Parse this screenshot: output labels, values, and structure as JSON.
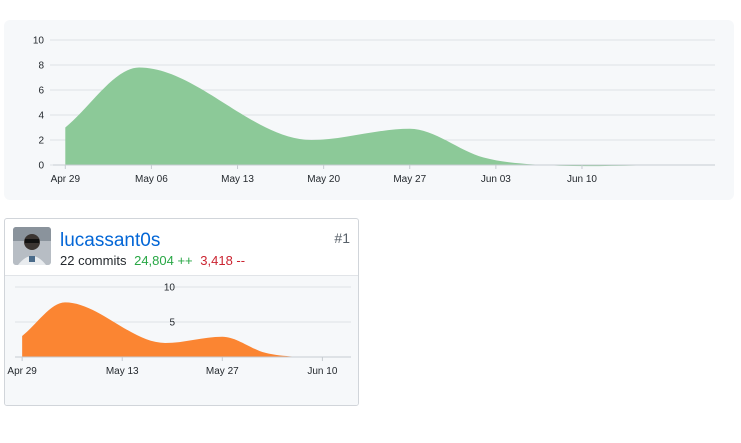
{
  "chart_data": [
    {
      "type": "area",
      "title": "",
      "xlabel": "",
      "ylabel": "",
      "x_tick_labels": [
        "Apr 29",
        "May 06",
        "May 13",
        "May 20",
        "May 27",
        "Jun 03",
        "Jun 10"
      ],
      "y_ticks": [
        0,
        2,
        4,
        6,
        8,
        10
      ],
      "ylim": [
        0,
        10
      ],
      "grid": true,
      "color": "#8cc998",
      "series": [
        {
          "name": "",
          "points": [
            [
              "Apr 29",
              3.0
            ],
            [
              "May 05",
              7.8
            ],
            [
              "May 19",
              2.0
            ],
            [
              "May 27",
              2.9
            ],
            [
              "Jun 02",
              0.6
            ],
            [
              "Jun 06",
              0.05
            ],
            [
              "Jun 18",
              0.0
            ]
          ]
        }
      ]
    },
    {
      "type": "area",
      "title": "",
      "xlabel": "",
      "ylabel": "",
      "x_tick_labels": [
        "Apr 29",
        "May 13",
        "May 27",
        "Jun 10"
      ],
      "y_ticks": [
        5,
        10
      ],
      "ylim": [
        0,
        10
      ],
      "grid": true,
      "color": "#fb8532",
      "series": [
        {
          "name": "",
          "points": [
            [
              "Apr 29",
              3.0
            ],
            [
              "May 05",
              7.8
            ],
            [
              "May 19",
              2.0
            ],
            [
              "May 27",
              2.9
            ],
            [
              "Jun 02",
              0.6
            ],
            [
              "Jun 06",
              0.05
            ],
            [
              "Jun 10",
              0.0
            ]
          ]
        }
      ]
    }
  ],
  "contributor": {
    "username": "lucassant0s",
    "commits": "22 commits",
    "additions": "24,804 ++",
    "deletions": "3,418 --",
    "rank": "#1"
  },
  "colors": {
    "link": "#0366d6",
    "additions": "#28a745",
    "deletions": "#cb2431"
  }
}
